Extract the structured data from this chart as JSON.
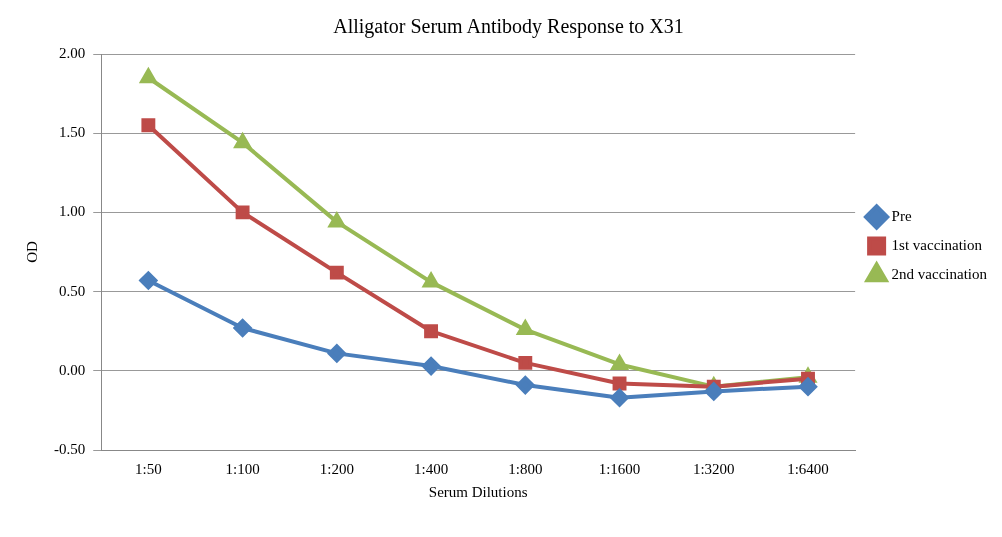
{
  "chart_data": {
    "type": "line",
    "title": "Alligator Serum Antibody Response to X31",
    "xlabel": "Serum Dilutions",
    "ylabel": "OD",
    "categories": [
      "1:50",
      "1:100",
      "1:200",
      "1:400",
      "1:800",
      "1:1600",
      "1:3200",
      "1:6400"
    ],
    "series": [
      {
        "name": "Pre",
        "color": "#4a7ebb",
        "marker": "diamond",
        "values": [
          0.57,
          0.27,
          0.11,
          0.03,
          -0.09,
          -0.17,
          -0.13,
          -0.1
        ]
      },
      {
        "name": "1st vaccination",
        "color": "#be4b48",
        "marker": "square",
        "values": [
          1.55,
          1.0,
          0.62,
          0.25,
          0.05,
          -0.08,
          -0.1,
          -0.05
        ]
      },
      {
        "name": "2nd vaccination",
        "color": "#98b954",
        "marker": "triangle",
        "values": [
          1.85,
          1.44,
          0.94,
          0.56,
          0.26,
          0.04,
          -0.1,
          -0.04
        ]
      }
    ],
    "ylim": [
      -0.5,
      2.0
    ],
    "yticks": [
      {
        "value": -0.5,
        "label": "-0.50"
      },
      {
        "value": 0,
        "label": "0.00"
      },
      {
        "value": 0.5,
        "label": "0.50"
      },
      {
        "value": 1,
        "label": "1.00"
      },
      {
        "value": 1.5,
        "label": "1.50"
      },
      {
        "value": 2,
        "label": "2.00"
      }
    ],
    "grid": "y",
    "legend": "right"
  }
}
